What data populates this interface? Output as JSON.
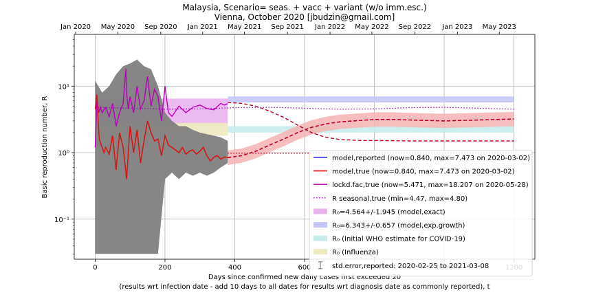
{
  "chart_data": {
    "type": "line",
    "title_line1": "Malaysia, Scenario= seas. + vacc + variant (w/o imm.esc.)",
    "title_line2": "Vienna, October 2020 [jbudzin@gmail.com]",
    "xlabel_line1": "Days since confirmed new daily cases first exceeded 20",
    "xlabel_line2": "(results wrt infection date - add 10 days to all dates for results wrt diagnosis date as commonly reported), t",
    "ylabel": "Basic reproduction number, R",
    "yscale": "log",
    "xlim": [
      -60,
      1260
    ],
    "ylim": [
      0.025,
      60
    ],
    "x_ticks": [
      0,
      200,
      400,
      600,
      800,
      1000,
      1200
    ],
    "y_ticks": [
      {
        "value": 0.1,
        "label": "10⁻¹"
      },
      {
        "value": 1,
        "label": "10⁰"
      },
      {
        "value": 10,
        "label": "10¹"
      }
    ],
    "top_axis_ticks": [
      {
        "x": -56,
        "label": "Jan 2020"
      },
      {
        "x": 65,
        "label": "May 2020"
      },
      {
        "x": 188,
        "label": "Sep 2020"
      },
      {
        "x": 308,
        "label": "Jan 2021"
      },
      {
        "x": 428,
        "label": "May 2021"
      },
      {
        "x": 551,
        "label": "Sep 2021"
      },
      {
        "x": 673,
        "label": "Jan 2022"
      },
      {
        "x": 793,
        "label": "May 2022"
      },
      {
        "x": 916,
        "label": "Sep 2022"
      },
      {
        "x": 1038,
        "label": "Jan 2023"
      },
      {
        "x": 1158,
        "label": "May 2023"
      }
    ],
    "bands": [
      {
        "name": "R0_exact",
        "x": [
          0,
          380
        ],
        "y": [
          2.619,
          6.509
        ],
        "color": "#e9b3ee"
      },
      {
        "name": "R0_expgrowth",
        "x": [
          380,
          1200
        ],
        "y": [
          5.686,
          7.0
        ],
        "color": "#c5c7f6"
      },
      {
        "name": "R0_who",
        "x": [
          380,
          1200
        ],
        "y": [
          2.0,
          2.5
        ],
        "color": "#c8ecec"
      },
      {
        "name": "R0_influenza",
        "x": [
          0,
          380
        ],
        "y": [
          1.8,
          2.8
        ],
        "color": "#ece9c0"
      }
    ],
    "seasonal_line": {
      "x": [
        0,
        100,
        200,
        300,
        400,
        500,
        600,
        700,
        800,
        900,
        1000,
        1100,
        1200
      ],
      "y": [
        4.8,
        4.65,
        4.5,
        4.55,
        4.75,
        4.8,
        4.65,
        4.5,
        4.55,
        4.75,
        4.8,
        4.65,
        4.5
      ]
    },
    "lockdown_future": {
      "x": [
        380,
        420,
        460,
        500,
        540,
        580,
        620,
        660,
        700,
        760,
        800,
        900,
        1000,
        1100,
        1200
      ],
      "y": [
        5.7,
        5.5,
        5.0,
        4.2,
        3.4,
        2.6,
        2.0,
        1.7,
        1.58,
        1.52,
        1.52,
        1.5,
        1.5,
        1.5,
        1.5
      ]
    },
    "model_future": {
      "x": [
        380,
        420,
        460,
        500,
        540,
        580,
        620,
        660,
        700,
        760,
        800,
        850,
        900,
        1000,
        1100,
        1200
      ],
      "y": [
        0.84,
        0.9,
        1.05,
        1.3,
        1.6,
        2.0,
        2.4,
        2.7,
        2.9,
        3.05,
        3.15,
        3.15,
        3.1,
        3.0,
        3.1,
        3.2
      ]
    },
    "model_future_band": {
      "lower_factor": 0.78,
      "upper_factor": 1.28
    },
    "true_baseline": {
      "x": [
        380,
        1200
      ],
      "y": [
        0.98,
        0.98
      ]
    },
    "model_true": {
      "x": [
        0,
        5,
        8,
        10,
        12,
        15,
        20,
        25,
        30,
        40,
        50,
        60,
        70,
        80,
        90,
        100,
        110,
        120,
        130,
        140,
        150,
        160,
        170,
        180,
        190,
        200,
        210,
        220,
        230,
        240,
        250,
        260,
        270,
        280,
        290,
        300,
        310,
        320,
        330,
        340,
        350,
        360,
        370,
        380
      ],
      "y": [
        4.5,
        7.47,
        3.5,
        2.2,
        1.6,
        1.4,
        1.2,
        1.0,
        1.2,
        0.95,
        1.8,
        0.55,
        2.0,
        1.2,
        0.4,
        2.5,
        1.0,
        2.2,
        0.7,
        1.5,
        3.0,
        2.0,
        1.5,
        1.6,
        0.9,
        1.8,
        1.3,
        1.2,
        1.1,
        1.0,
        1.2,
        0.95,
        1.05,
        1.1,
        0.95,
        1.05,
        1.2,
        0.9,
        0.75,
        0.85,
        0.9,
        0.8,
        0.86,
        0.84
      ]
    },
    "lockdown_true": {
      "x": [
        0,
        5,
        10,
        15,
        20,
        30,
        40,
        50,
        60,
        70,
        80,
        88,
        90,
        95,
        100,
        110,
        120,
        130,
        140,
        150,
        160,
        170,
        180,
        190,
        200,
        210,
        220,
        240,
        260,
        280,
        300,
        320,
        340,
        360,
        370,
        380
      ],
      "y": [
        1.2,
        6.5,
        4.0,
        4.8,
        4.0,
        4.8,
        3.5,
        5.5,
        2.5,
        4.0,
        5.5,
        18.2,
        8.0,
        4.5,
        7.0,
        4.0,
        10.0,
        4.5,
        6.0,
        14.0,
        5.0,
        9.0,
        7.0,
        3.0,
        10.0,
        4.0,
        3.5,
        5.0,
        4.0,
        4.8,
        5.2,
        4.6,
        4.4,
        5.5,
        5.2,
        5.47
      ]
    },
    "stderr_band": {
      "x": [
        0,
        20,
        40,
        60,
        80,
        100,
        120,
        140,
        160,
        180,
        200,
        220,
        240,
        260,
        280,
        300,
        320,
        340,
        360,
        380
      ],
      "lower": [
        0.03,
        0.03,
        0.03,
        0.03,
        0.03,
        0.03,
        0.03,
        0.03,
        0.03,
        0.03,
        0.4,
        0.5,
        0.4,
        0.5,
        0.45,
        0.5,
        0.45,
        0.5,
        0.6,
        0.7
      ],
      "upper": [
        12,
        8,
        10,
        15,
        20,
        22,
        25,
        20,
        18,
        10,
        4,
        3,
        2.5,
        2.5,
        2.2,
        2.0,
        1.9,
        1.8,
        1.7,
        1.5
      ]
    },
    "series_colors": {
      "model_reported": "#0000ee",
      "model_true": "#dd1111",
      "lockdown": "#bb00bb",
      "seasonal": "#aa00cc",
      "future": "#bb0022",
      "future_band": "#f5b3b3",
      "stderr": "#7f7f7f"
    },
    "legend": [
      {
        "kind": "line",
        "color": "#2222dd",
        "label": "model,reported (now=0.840, max=7.473 on 2020-03-02)"
      },
      {
        "kind": "line",
        "color": "#dd1111",
        "label": "model,true (now=0.840, max=7.473 on 2020-03-02)"
      },
      {
        "kind": "line",
        "color": "#bb11bb",
        "label": "lockd.fac,true (now=5.471, max=18.207 on 2020-05-28)"
      },
      {
        "kind": "dotted",
        "color": "#aa00cc",
        "label": "R seasonal,true (min=4.47, max=4.80)"
      },
      {
        "kind": "patch",
        "color": "#e9b3ee",
        "label": "R₀=4.564+/-1.945 (model,exact)"
      },
      {
        "kind": "patch",
        "color": "#c5c7f6",
        "label": "R₀=6.343+/-0.657 (model,exp.growth)"
      },
      {
        "kind": "patch",
        "color": "#c8ecec",
        "label": "R₀ (Initial WHO estimate for COVID-19)"
      },
      {
        "kind": "patch",
        "color": "#ece9c0",
        "label": "R₀ (Influenza)"
      },
      {
        "kind": "errbar",
        "color": "#7f7f7f",
        "label": "std.error,reported: 2020-02-25 to 2021-03-08"
      }
    ]
  }
}
